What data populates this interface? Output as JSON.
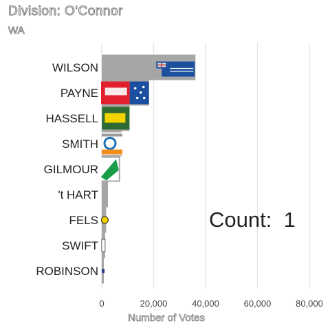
{
  "header": {
    "title": "Division: O'Connor",
    "subtitle": "WA"
  },
  "counter": {
    "label": "Count:",
    "value": "1"
  },
  "chart_data": {
    "type": "bar",
    "orientation": "horizontal",
    "categories": [
      "WILSON",
      "PAYNE",
      "HASSELL",
      "SMITH",
      "GILMOUR",
      "'t HART",
      "FELS",
      "SWIFT",
      "ROBINSON"
    ],
    "values": [
      36100,
      18200,
      10700,
      7600,
      7100,
      2400,
      1700,
      1300,
      800
    ],
    "party_logos": [
      "liberal",
      "labor",
      "nationals",
      "one-nation",
      "greens",
      "none",
      "fels",
      "swift",
      "robinson"
    ],
    "xlabel": "Number of Votes",
    "ylabel": "",
    "xlim": [
      0,
      80000
    ],
    "xticks": [
      "0",
      "20,000",
      "40,000",
      "60,000",
      "80,000"
    ],
    "grid": true,
    "bar_color": "#a6a6a6",
    "colors": {
      "liberal": "#1c4f9c",
      "labor": "#e0202c",
      "nationals": "#2e6b32",
      "nationals_text": "#f2d300",
      "one_nation": "#1b6fb5",
      "one_nation_orange": "#f28c1c",
      "greens": "#1a9d49",
      "fels": "#f2d300",
      "robinson": "#2c3e8f"
    }
  }
}
